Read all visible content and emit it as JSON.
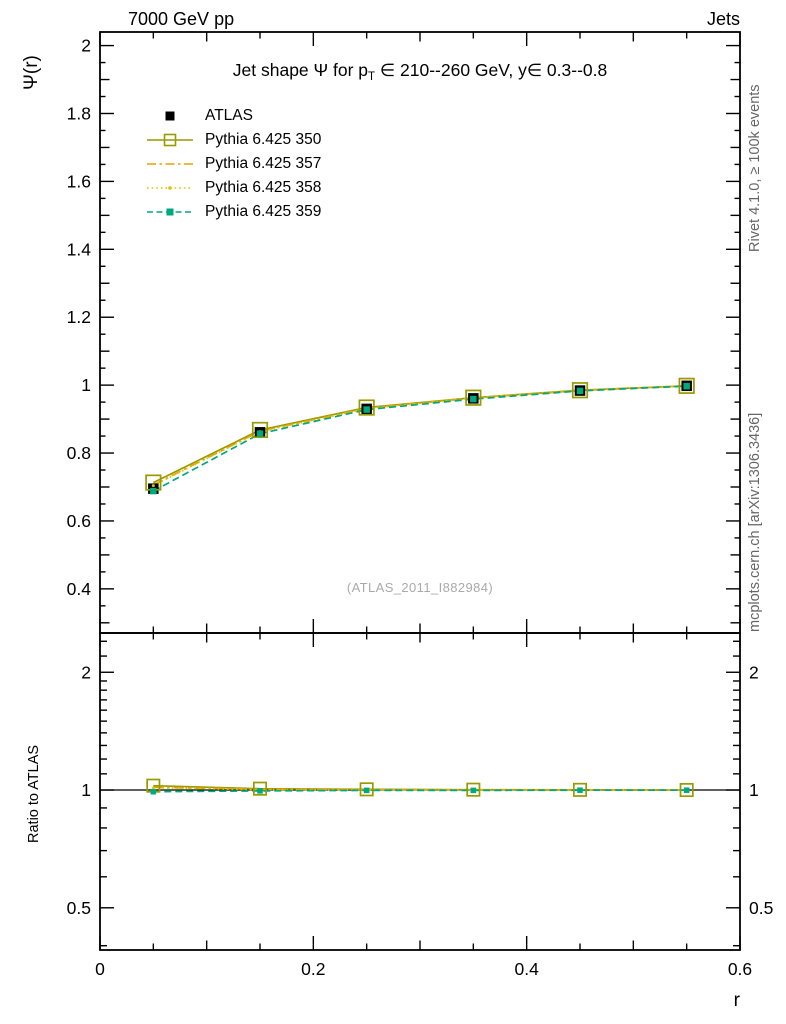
{
  "header": {
    "left": "7000 GeV pp",
    "right": "Jets"
  },
  "title": {
    "part1": "Jet shape Ψ for p",
    "sub": "T",
    "part2": " ∈ 210--260 GeV, y∈ 0.3--0.8"
  },
  "watermark": "(ATLAS_2011_I882984)",
  "side_notes": {
    "top_right": "Rivet 4.1.0, ≥ 100k events",
    "bottom_right": "mcplots.cern.ch [arXiv:1306.3436]"
  },
  "chart_data": {
    "type": "line",
    "title": "Jet shape Ψ for p_T ∈ 210--260 GeV, y∈ 0.3--0.8",
    "x": [
      0.05,
      0.15,
      0.25,
      0.35,
      0.45,
      0.55
    ],
    "series": [
      {
        "name": "ATLAS",
        "color": "#000000",
        "line": null,
        "marker": "filled-square",
        "marker_size": 10.5,
        "values": [
          0.695,
          0.861,
          0.93,
          0.961,
          0.984,
          0.998
        ],
        "ratio": null
      },
      {
        "name": "Pythia 6.425 350",
        "color": "#999900",
        "line": "solid",
        "marker": "open-square",
        "marker_size": 14.5,
        "values": [
          0.713,
          0.868,
          0.934,
          0.963,
          0.985,
          0.998
        ],
        "ratio": [
          1.026,
          1.008,
          1.004,
          1.002,
          1.001,
          1.0
        ]
      },
      {
        "name": "Pythia 6.425 357",
        "color": "#e8a000",
        "line": "dashdot",
        "marker": "none",
        "marker_size": 0,
        "values": [
          0.706,
          0.864,
          0.932,
          0.962,
          0.984,
          0.998
        ],
        "ratio": [
          1.016,
          1.004,
          1.002,
          1.001,
          1.0,
          1.0
        ]
      },
      {
        "name": "Pythia 6.425 358",
        "color": "#d8c400",
        "line": "dotted",
        "marker": "dot",
        "marker_size": 3,
        "values": [
          0.704,
          0.863,
          0.931,
          0.962,
          0.984,
          0.998
        ],
        "ratio": [
          1.013,
          1.002,
          1.001,
          1.001,
          1.0,
          1.0
        ]
      },
      {
        "name": "Pythia 6.425 359",
        "color": "#00a87d",
        "line": "dashed",
        "marker": "filled-square-small",
        "marker_size": 6.5,
        "values": [
          0.688,
          0.857,
          0.928,
          0.959,
          0.983,
          0.997
        ],
        "ratio": [
          0.99,
          0.995,
          0.998,
          0.998,
          0.999,
          0.999
        ]
      }
    ],
    "ratio_reference": 1,
    "axes": {
      "x": {
        "range": [
          0,
          0.6
        ],
        "major_ticks": [
          0,
          0.2,
          0.4,
          0.6
        ],
        "major_labels": [
          "0",
          "0.2",
          "0.4",
          "0.6"
        ],
        "minor_step": 0.05,
        "title": "r"
      },
      "y_main": {
        "range": [
          0.27,
          2.04
        ],
        "major_ticks": [
          0.4,
          0.6,
          0.8,
          1,
          1.2,
          1.4,
          1.6,
          1.8,
          2
        ],
        "major_labels": [
          "0.4",
          "0.6",
          "0.8",
          "1",
          "1.2",
          "1.4",
          "1.6",
          "1.8",
          "2"
        ],
        "minor_step": 0.05,
        "title": "Ψ(r)"
      },
      "y_ratio": {
        "range": [
          0.39,
          2.52
        ],
        "scale": "log",
        "major_ticks": [
          0.5,
          1,
          2
        ],
        "major_labels": [
          "0.5",
          "1",
          "2"
        ],
        "minor_ticks": [
          0.4,
          0.6,
          0.7,
          0.8,
          0.9,
          1.1,
          1.2,
          1.3,
          1.4,
          1.5,
          1.6,
          1.7,
          1.8,
          1.9,
          2.2,
          2.4
        ],
        "title": "Ratio to ATLAS"
      }
    },
    "legend_position": "top-left",
    "grid": false
  }
}
